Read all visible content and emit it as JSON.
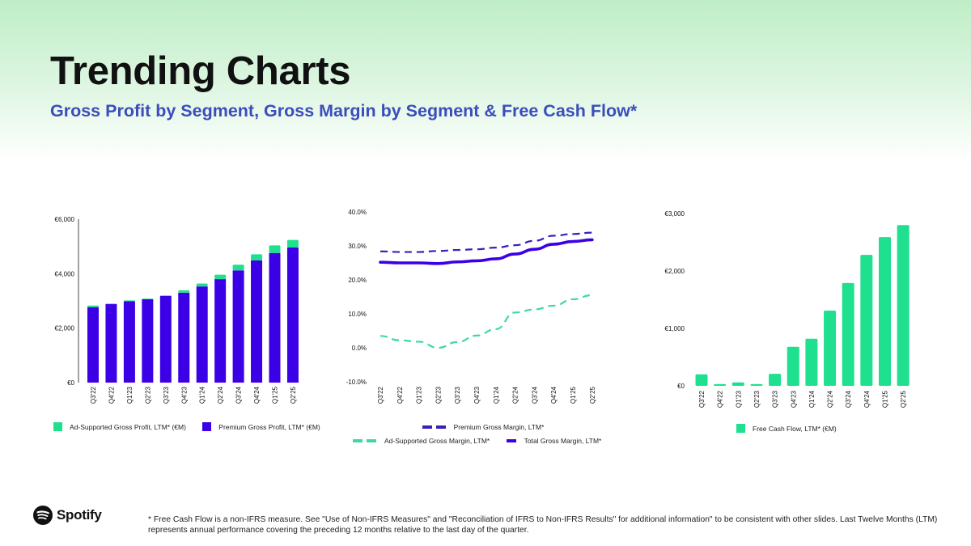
{
  "header": {
    "title": "Trending Charts",
    "subtitle": "Gross Profit by Segment, Gross Margin by Segment & Free Cash Flow*"
  },
  "colors": {
    "green": "#1fe08e",
    "purple": "#3c00e6",
    "navy_dashed": "#3a1fb8",
    "subtitle": "#3a4dbb"
  },
  "chart_data": [
    {
      "type": "bar",
      "stacked": true,
      "title": "Gross Profit by Segment",
      "categories": [
        "Q3'22",
        "Q4'22",
        "Q1'23",
        "Q2'23",
        "Q3'23",
        "Q4'23",
        "Q1'24",
        "Q2'24",
        "Q3'24",
        "Q4'24",
        "Q1'25",
        "Q2'25"
      ],
      "series": [
        {
          "name": "Premium Gross Profit, LTM* (€M)",
          "color": "#3c00e6",
          "values": [
            2770,
            2880,
            2990,
            3060,
            3180,
            3300,
            3530,
            3800,
            4120,
            4490,
            4760,
            4960
          ]
        },
        {
          "name": "Ad-Supported Gross Profit, LTM* (€M)",
          "color": "#1fe08e",
          "values": [
            60,
            20,
            30,
            20,
            20,
            90,
            110,
            160,
            210,
            220,
            280,
            280
          ]
        }
      ],
      "ylim": [
        0,
        6000
      ],
      "yticks": [
        "€0",
        "€2,000",
        "€4,000",
        "€6,000"
      ],
      "ytick_values": [
        0,
        2000,
        4000,
        6000
      ],
      "legend": [
        "Ad-Supported Gross Profit, LTM* (€M)",
        "Premium Gross Profit, LTM*  (€M)"
      ],
      "legend_position": "bottom",
      "grid": false
    },
    {
      "type": "line",
      "title": "Gross Margin by Segment",
      "categories": [
        "Q3'22",
        "Q4'22",
        "Q1'23",
        "Q2'23",
        "Q3'23",
        "Q4'23",
        "Q1'24",
        "Q2'24",
        "Q3'24",
        "Q4'24",
        "Q1'25",
        "Q2'25"
      ],
      "series": [
        {
          "name": "Premium Gross Margin, LTM*",
          "color": "#3a1fb8",
          "style": "dashed",
          "values": [
            28.4,
            28.2,
            28.2,
            28.5,
            28.8,
            29.0,
            29.5,
            30.2,
            31.5,
            33.0,
            33.5,
            33.9
          ]
        },
        {
          "name": "Ad-Supported Gross Margin, LTM*",
          "color": "#3fd9a0",
          "style": "dashed",
          "values": [
            3.5,
            2.2,
            1.8,
            0.0,
            1.7,
            3.6,
            5.5,
            10.4,
            11.3,
            12.4,
            14.3,
            15.5
          ]
        },
        {
          "name": "Total Gross Margin, LTM*",
          "color": "#3c00e6",
          "style": "solid",
          "values": [
            25.2,
            25.0,
            25.0,
            24.8,
            25.3,
            25.6,
            26.2,
            27.6,
            29.0,
            30.5,
            31.3,
            31.8
          ]
        }
      ],
      "ylim": [
        -10,
        40
      ],
      "yticks": [
        "-10.0%",
        "0.0%",
        "10.0%",
        "20.0%",
        "30.0%",
        "40.0%"
      ],
      "ytick_values": [
        -10,
        0,
        10,
        20,
        30,
        40
      ],
      "legend": [
        "Premium Gross Margin, LTM*",
        "Ad-Supported Gross Margin, LTM*",
        "Total Gross Margin, LTM*"
      ],
      "legend_position": "bottom",
      "grid": false
    },
    {
      "type": "bar",
      "title": "Free Cash Flow",
      "categories": [
        "Q3'22",
        "Q4'22",
        "Q1'23",
        "Q2'23",
        "Q3'23",
        "Q4'23",
        "Q1'24",
        "Q2'24",
        "Q3'24",
        "Q4'24",
        "Q1'25",
        "Q2'25"
      ],
      "series": [
        {
          "name": "Free Cash Flow, LTM* (€M)",
          "color": "#1fe08e",
          "values": [
            200,
            30,
            60,
            30,
            210,
            680,
            820,
            1310,
            1790,
            2280,
            2590,
            2800
          ]
        }
      ],
      "ylim": [
        0,
        3000
      ],
      "yticks": [
        "€0",
        "€1,000",
        "€2,000",
        "€3,000"
      ],
      "ytick_values": [
        0,
        1000,
        2000,
        3000
      ],
      "legend": [
        "Free Cash Flow, LTM* (€M)"
      ],
      "legend_position": "bottom",
      "grid": false
    }
  ],
  "footer": {
    "brand": "Spotify",
    "footnote": "* Free Cash Flow is a non-IFRS measure. See \"Use of Non-IFRS Measures\" and \"Reconciliation of IFRS to Non-IFRS Results\" for additional information\" to be consistent with other slides. Last Twelve Months (LTM) represents annual performance covering the preceding 12 months relative to the last day of the quarter."
  }
}
